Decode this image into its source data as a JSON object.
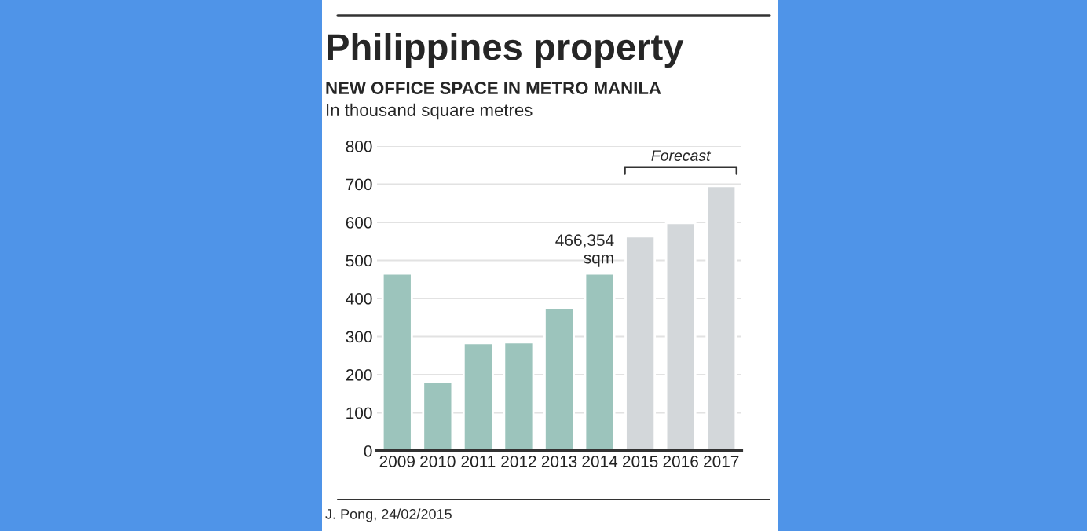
{
  "chart_data": {
    "type": "bar",
    "title": "Philippines property",
    "subtitle": "NEW OFFICE SPACE IN METRO MANILA",
    "ylabel": "In thousand square metres",
    "categories": [
      "2009",
      "2010",
      "2011",
      "2012",
      "2013",
      "2014",
      "2015",
      "2016",
      "2017"
    ],
    "values": [
      466,
      180,
      283,
      285,
      375,
      466,
      563,
      598,
      695
    ],
    "colors": [
      "#9cc4bc",
      "#9cc4bc",
      "#9cc4bc",
      "#9cc4bc",
      "#9cc4bc",
      "#9cc4bc",
      "#d3d7da",
      "#d3d7da",
      "#d3d7da"
    ],
    "ylim": [
      0,
      800
    ],
    "yticks": [
      0,
      100,
      200,
      300,
      400,
      500,
      600,
      700,
      800
    ],
    "grid": "y",
    "annotations": [
      {
        "text": "466,354\nsqm",
        "x": "2014",
        "y": 466
      },
      {
        "text": "Forecast"
      },
      "J. Pong, 24/02/2015"
    ]
  }
}
